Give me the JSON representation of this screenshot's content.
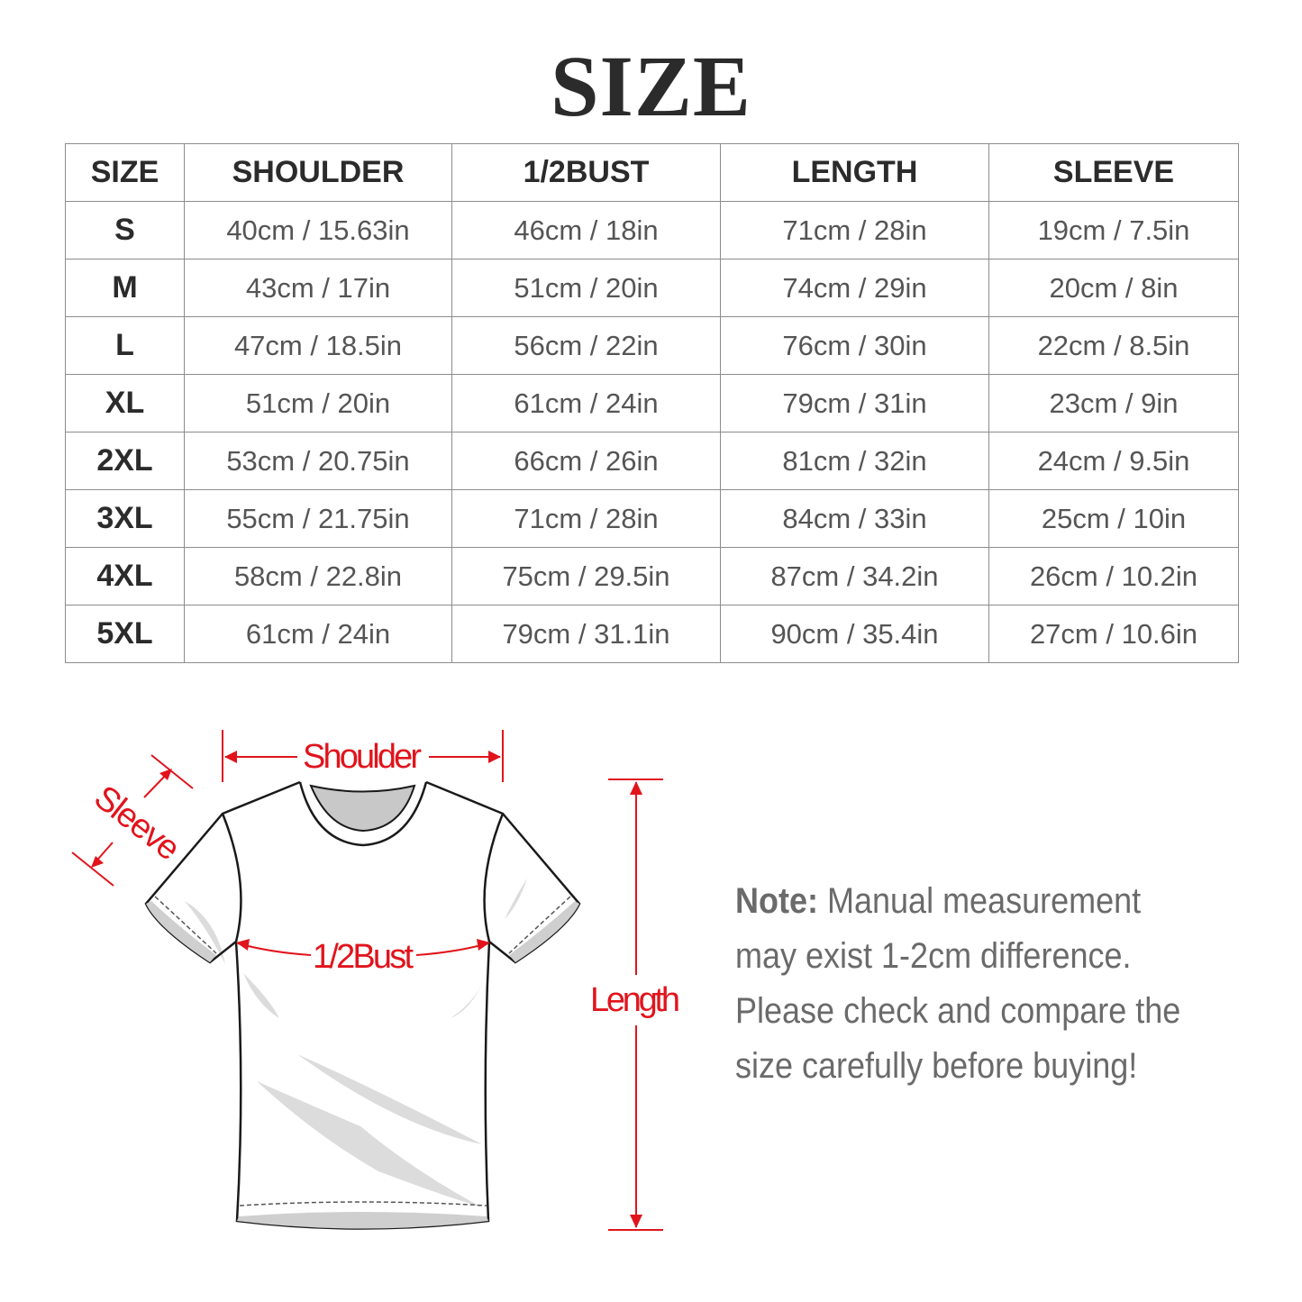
{
  "title": "SIZE",
  "table": {
    "headers": [
      "SIZE",
      "SHOULDER",
      "1/2BUST",
      "LENGTH",
      "SLEEVE"
    ],
    "rows": [
      [
        "S",
        "40cm / 15.63in",
        "46cm / 18in",
        "71cm / 28in",
        "19cm / 7.5in"
      ],
      [
        "M",
        "43cm / 17in",
        "51cm / 20in",
        "74cm / 29in",
        "20cm / 8in"
      ],
      [
        "L",
        "47cm / 18.5in",
        "56cm / 22in",
        "76cm / 30in",
        "22cm / 8.5in"
      ],
      [
        "XL",
        "51cm / 20in",
        "61cm / 24in",
        "79cm / 31in",
        "23cm / 9in"
      ],
      [
        "2XL",
        "53cm / 20.75in",
        "66cm / 26in",
        "81cm / 32in",
        "24cm / 9.5in"
      ],
      [
        "3XL",
        "55cm / 21.75in",
        "71cm / 28in",
        "84cm / 33in",
        "25cm / 10in"
      ],
      [
        "4XL",
        "58cm / 22.8in",
        "75cm / 29.5in",
        "87cm / 34.2in",
        "26cm / 10.2in"
      ],
      [
        "5XL",
        "61cm / 24in",
        "79cm / 31.1in",
        "90cm / 35.4in",
        "27cm / 10.6in"
      ]
    ]
  },
  "diagram": {
    "shoulder_label": "Shoulder",
    "sleeve_label": "Sleeve",
    "bust_label": "1/2Bust",
    "length_label": "Length",
    "accent_color": "#e1141c"
  },
  "note": {
    "label": "Note:",
    "text": " Manual measurement may exist 1-2cm difference. Please check and compare the size carefully before buying!"
  }
}
